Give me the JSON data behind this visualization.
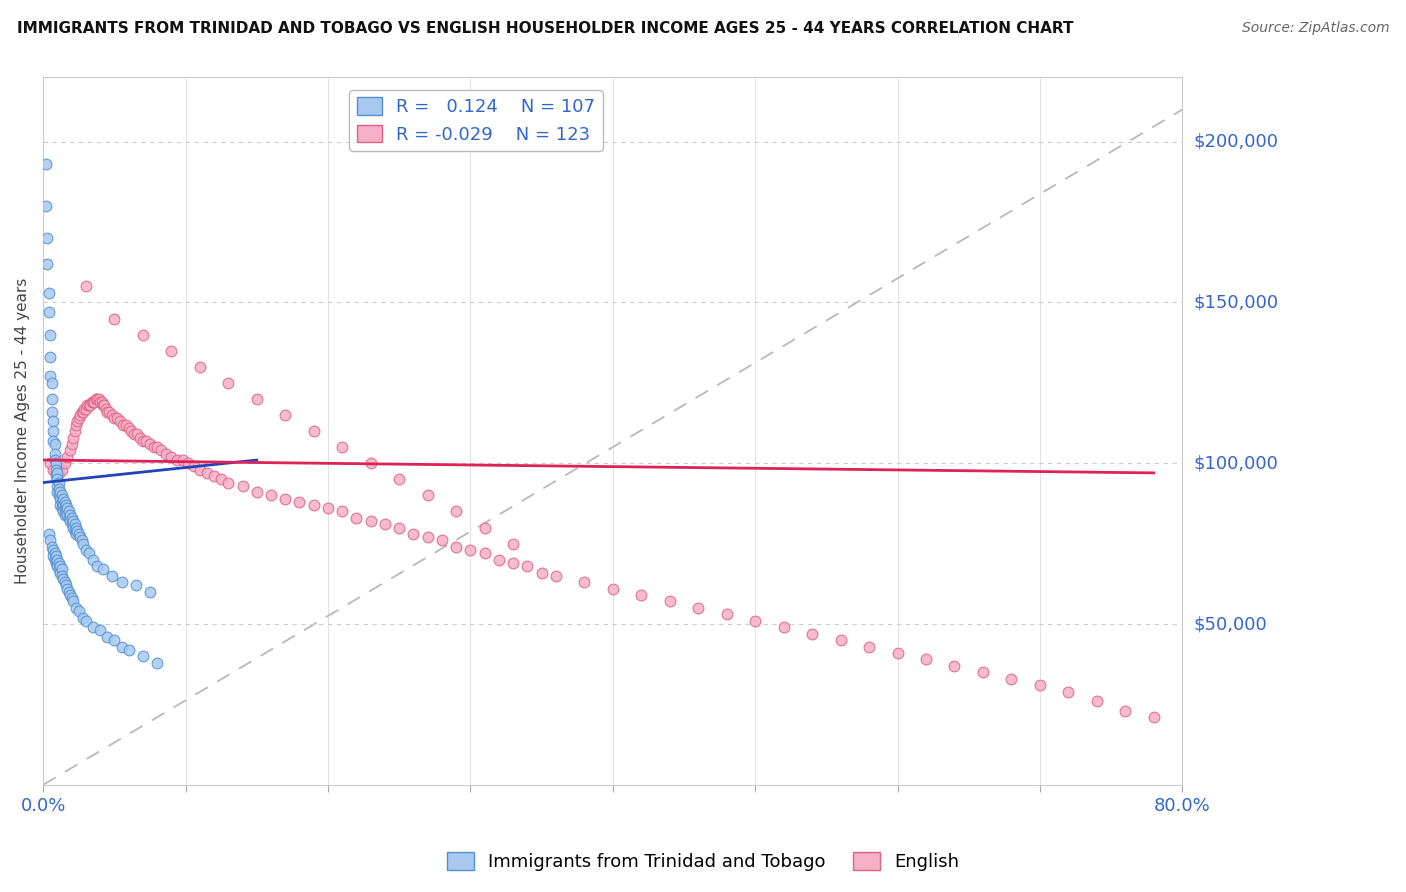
{
  "title": "IMMIGRANTS FROM TRINIDAD AND TOBAGO VS ENGLISH HOUSEHOLDER INCOME AGES 25 - 44 YEARS CORRELATION CHART",
  "source": "Source: ZipAtlas.com",
  "ylabel": "Householder Income Ages 25 - 44 years",
  "y_tick_labels": [
    "$50,000",
    "$100,000",
    "$150,000",
    "$200,000"
  ],
  "y_tick_values": [
    50000,
    100000,
    150000,
    200000
  ],
  "xlim": [
    0.0,
    80.0
  ],
  "ylim": [
    0,
    220000
  ],
  "blue_R": 0.124,
  "blue_N": 107,
  "pink_R": -0.029,
  "pink_N": 123,
  "blue_color": "#a8c8f0",
  "pink_color": "#f5b0c8",
  "blue_edge": "#5090d0",
  "pink_edge": "#e06080",
  "blue_label": "Immigrants from Trinidad and Tobago",
  "pink_label": "English",
  "trend_blue_color": "#2244bb",
  "trend_pink_color": "#dd2255",
  "ref_line_color": "#b8b8b8",
  "background_color": "#ffffff",
  "grid_color": "#e0e0e0",
  "blue_x": [
    0.2,
    0.2,
    0.3,
    0.3,
    0.4,
    0.4,
    0.5,
    0.5,
    0.5,
    0.6,
    0.6,
    0.6,
    0.7,
    0.7,
    0.7,
    0.8,
    0.8,
    0.8,
    0.9,
    0.9,
    0.9,
    1.0,
    1.0,
    1.0,
    1.0,
    1.1,
    1.1,
    1.1,
    1.2,
    1.2,
    1.2,
    1.3,
    1.3,
    1.3,
    1.4,
    1.4,
    1.4,
    1.5,
    1.5,
    1.5,
    1.6,
    1.6,
    1.7,
    1.7,
    1.8,
    1.8,
    1.9,
    1.9,
    2.0,
    2.0,
    2.1,
    2.1,
    2.2,
    2.2,
    2.3,
    2.3,
    2.4,
    2.5,
    2.6,
    2.7,
    2.8,
    3.0,
    3.2,
    3.5,
    3.8,
    4.2,
    4.8,
    5.5,
    6.5,
    7.5,
    0.4,
    0.5,
    0.6,
    0.7,
    0.7,
    0.8,
    0.8,
    0.9,
    0.9,
    1.0,
    1.0,
    1.1,
    1.1,
    1.2,
    1.2,
    1.3,
    1.3,
    1.4,
    1.5,
    1.6,
    1.7,
    1.8,
    1.9,
    2.0,
    2.1,
    2.3,
    2.5,
    2.8,
    3.0,
    3.5,
    4.0,
    4.5,
    5.0,
    5.5,
    6.0,
    7.0,
    8.0
  ],
  "blue_y": [
    193000,
    180000,
    170000,
    162000,
    153000,
    147000,
    140000,
    133000,
    127000,
    125000,
    120000,
    116000,
    113000,
    110000,
    107000,
    106000,
    103000,
    101000,
    100000,
    98000,
    96000,
    97000,
    95000,
    93000,
    91000,
    94000,
    92000,
    90000,
    91000,
    89000,
    87000,
    90000,
    88000,
    86000,
    89000,
    87000,
    85000,
    88000,
    86000,
    84000,
    87000,
    85000,
    86000,
    84000,
    85000,
    83000,
    84000,
    82000,
    83000,
    81000,
    82000,
    80000,
    81000,
    79000,
    80000,
    78000,
    79000,
    78000,
    77000,
    76000,
    75000,
    73000,
    72000,
    70000,
    68000,
    67000,
    65000,
    63000,
    62000,
    60000,
    78000,
    76000,
    74000,
    73000,
    71000,
    72000,
    70000,
    71000,
    69000,
    70000,
    68000,
    69000,
    67000,
    68000,
    66000,
    67000,
    65000,
    64000,
    63000,
    62000,
    61000,
    60000,
    59000,
    58000,
    57000,
    55000,
    54000,
    52000,
    51000,
    49000,
    48000,
    46000,
    45000,
    43000,
    42000,
    40000,
    38000
  ],
  "pink_x": [
    0.5,
    0.7,
    0.9,
    1.1,
    1.3,
    1.5,
    1.7,
    1.9,
    2.0,
    2.1,
    2.2,
    2.3,
    2.4,
    2.5,
    2.6,
    2.7,
    2.8,
    2.9,
    3.0,
    3.1,
    3.2,
    3.3,
    3.4,
    3.5,
    3.6,
    3.7,
    3.8,
    3.9,
    4.0,
    4.1,
    4.2,
    4.3,
    4.4,
    4.5,
    4.6,
    4.8,
    5.0,
    5.2,
    5.4,
    5.6,
    5.8,
    6.0,
    6.2,
    6.4,
    6.6,
    6.8,
    7.0,
    7.2,
    7.5,
    7.8,
    8.0,
    8.3,
    8.6,
    9.0,
    9.4,
    9.8,
    10.2,
    10.6,
    11.0,
    11.5,
    12.0,
    12.5,
    13.0,
    14.0,
    15.0,
    16.0,
    17.0,
    18.0,
    19.0,
    20.0,
    21.0,
    22.0,
    23.0,
    24.0,
    25.0,
    26.0,
    27.0,
    28.0,
    29.0,
    30.0,
    31.0,
    32.0,
    33.0,
    34.0,
    35.0,
    36.0,
    38.0,
    40.0,
    42.0,
    44.0,
    46.0,
    48.0,
    50.0,
    52.0,
    54.0,
    56.0,
    58.0,
    60.0,
    62.0,
    64.0,
    66.0,
    68.0,
    70.0,
    72.0,
    74.0,
    76.0,
    78.0,
    3.0,
    5.0,
    7.0,
    9.0,
    11.0,
    13.0,
    15.0,
    17.0,
    19.0,
    21.0,
    23.0,
    25.0,
    27.0,
    29.0,
    31.0,
    33.0
  ],
  "pink_y": [
    100000,
    98000,
    97000,
    97000,
    98000,
    100000,
    102000,
    104000,
    106000,
    108000,
    110000,
    112000,
    113000,
    114000,
    115000,
    116000,
    116000,
    117000,
    117000,
    118000,
    118000,
    118000,
    119000,
    119000,
    119000,
    120000,
    120000,
    120000,
    119000,
    119000,
    118000,
    118000,
    117000,
    116000,
    116000,
    115000,
    114000,
    114000,
    113000,
    112000,
    112000,
    111000,
    110000,
    109000,
    109000,
    108000,
    107000,
    107000,
    106000,
    105000,
    105000,
    104000,
    103000,
    102000,
    101000,
    101000,
    100000,
    99000,
    98000,
    97000,
    96000,
    95000,
    94000,
    93000,
    91000,
    90000,
    89000,
    88000,
    87000,
    86000,
    85000,
    83000,
    82000,
    81000,
    80000,
    78000,
    77000,
    76000,
    74000,
    73000,
    72000,
    70000,
    69000,
    68000,
    66000,
    65000,
    63000,
    61000,
    59000,
    57000,
    55000,
    53000,
    51000,
    49000,
    47000,
    45000,
    43000,
    41000,
    39000,
    37000,
    35000,
    33000,
    31000,
    29000,
    26000,
    23000,
    21000,
    155000,
    145000,
    140000,
    135000,
    130000,
    125000,
    120000,
    115000,
    110000,
    105000,
    100000,
    95000,
    90000,
    85000,
    80000,
    75000
  ]
}
